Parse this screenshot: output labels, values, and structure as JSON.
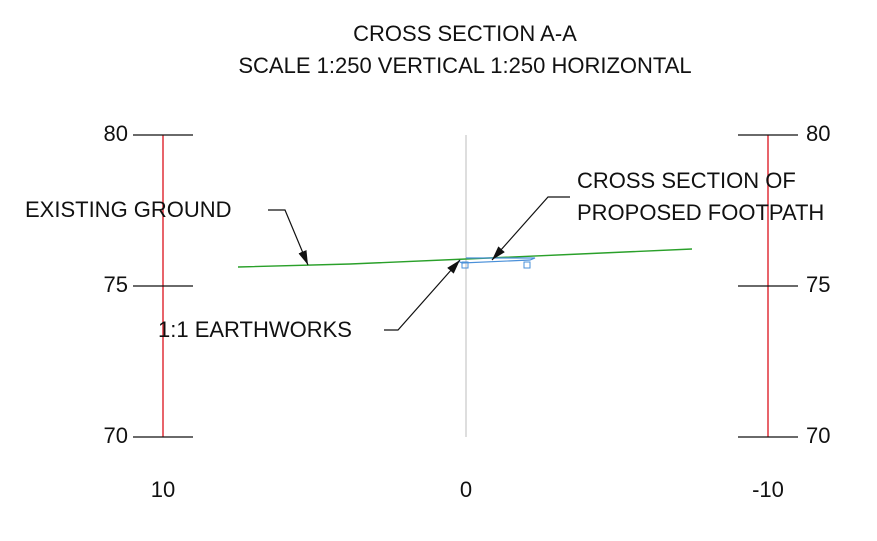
{
  "title": {
    "line1": "CROSS SECTION A-A",
    "line2": "SCALE 1:250 VERTICAL 1:250 HORIZONTAL"
  },
  "left_scale": {
    "labels": [
      "80",
      "75",
      "70"
    ]
  },
  "right_scale": {
    "labels": [
      "80",
      "75",
      "70"
    ]
  },
  "offsets": [
    "10",
    "0",
    "-10"
  ],
  "annotations": {
    "existing_ground": "EXISTING GROUND",
    "footpath_line1": "CROSS SECTION OF",
    "footpath_line2": "PROPOSED FOOTPATH",
    "earthworks": "1:1 EARTHWORKS"
  }
}
